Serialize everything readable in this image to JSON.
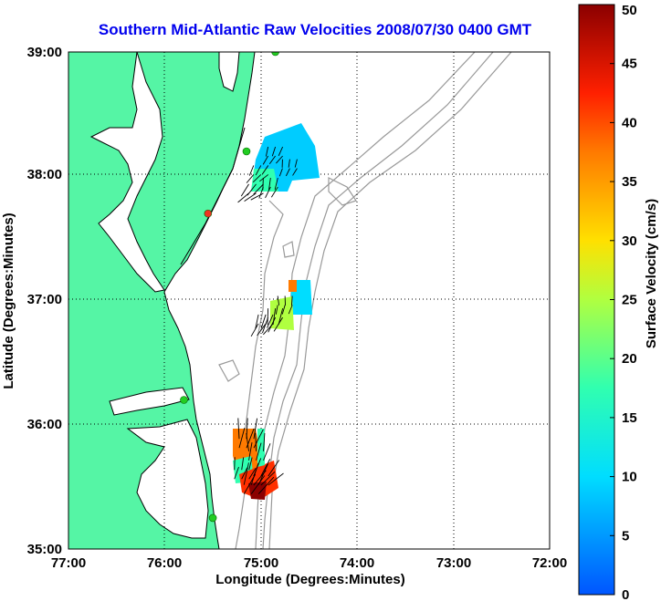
{
  "title": "Southern Mid-Atlantic Raw Velocities 2008/07/30 0400 GMT",
  "xlabel": "Longitude (Degrees:Minutes)",
  "ylabel": "Latitude (Degrees:Minutes)",
  "colorbar": {
    "label": "Surface Velocity (cm/s)",
    "min": 0,
    "max": 50,
    "ticks": [
      "0",
      "5",
      "10",
      "15",
      "20",
      "25",
      "30",
      "35",
      "40",
      "45",
      "50"
    ]
  },
  "axes": {
    "lon_range": [
      -77,
      -72
    ],
    "lat_range": [
      35,
      39
    ],
    "xticks": [
      "77:00",
      "76:00",
      "75:00",
      "74:00",
      "73:00",
      "72:00"
    ],
    "yticks": [
      "35:00",
      "36:00",
      "37:00",
      "38:00",
      "39:00"
    ]
  },
  "grid": "dotted",
  "colors": {
    "land": "#55f5a5",
    "coastline": "#000000",
    "bathymetry": "#999999",
    "title": "#0000ee",
    "radar_site": "#22cc22",
    "radar_site_alt": "#ee3322"
  },
  "radar_sites": [
    {
      "lon": -74.85,
      "lat": 39.0,
      "color": "radar_site"
    },
    {
      "lon": -75.15,
      "lat": 38.2,
      "color": "radar_site"
    },
    {
      "lon": -75.55,
      "lat": 37.7,
      "color": "radar_site_alt"
    },
    {
      "lon": -75.8,
      "lat": 36.2,
      "color": "radar_site"
    },
    {
      "lon": -75.5,
      "lat": 35.25,
      "color": "radar_site"
    }
  ],
  "velocity_patches": [
    {
      "lon": -74.7,
      "lat": 38.1,
      "speed": 8,
      "dir": 200
    },
    {
      "lon": -74.85,
      "lat": 38.2,
      "speed": 12,
      "dir": 210
    },
    {
      "lon": -75.0,
      "lat": 38.05,
      "speed": 15,
      "dir": 220
    },
    {
      "lon": -74.9,
      "lat": 37.95,
      "speed": 18,
      "dir": 200
    },
    {
      "lon": -75.05,
      "lat": 37.9,
      "speed": 24,
      "dir": 230
    },
    {
      "lon": -74.75,
      "lat": 37.0,
      "speed": 11,
      "dir": 190
    },
    {
      "lon": -74.85,
      "lat": 36.9,
      "speed": 30,
      "dir": 200
    },
    {
      "lon": -74.95,
      "lat": 36.85,
      "speed": 25,
      "dir": 210
    },
    {
      "lon": -75.15,
      "lat": 35.85,
      "speed": 42,
      "dir": 15
    },
    {
      "lon": -75.05,
      "lat": 35.75,
      "speed": 35,
      "dir": 10
    },
    {
      "lon": -75.0,
      "lat": 35.55,
      "speed": 38,
      "dir": 40
    },
    {
      "lon": -75.1,
      "lat": 35.48,
      "speed": 47,
      "dir": 30
    },
    {
      "lon": -75.2,
      "lat": 35.6,
      "speed": 20,
      "dir": 20
    }
  ]
}
